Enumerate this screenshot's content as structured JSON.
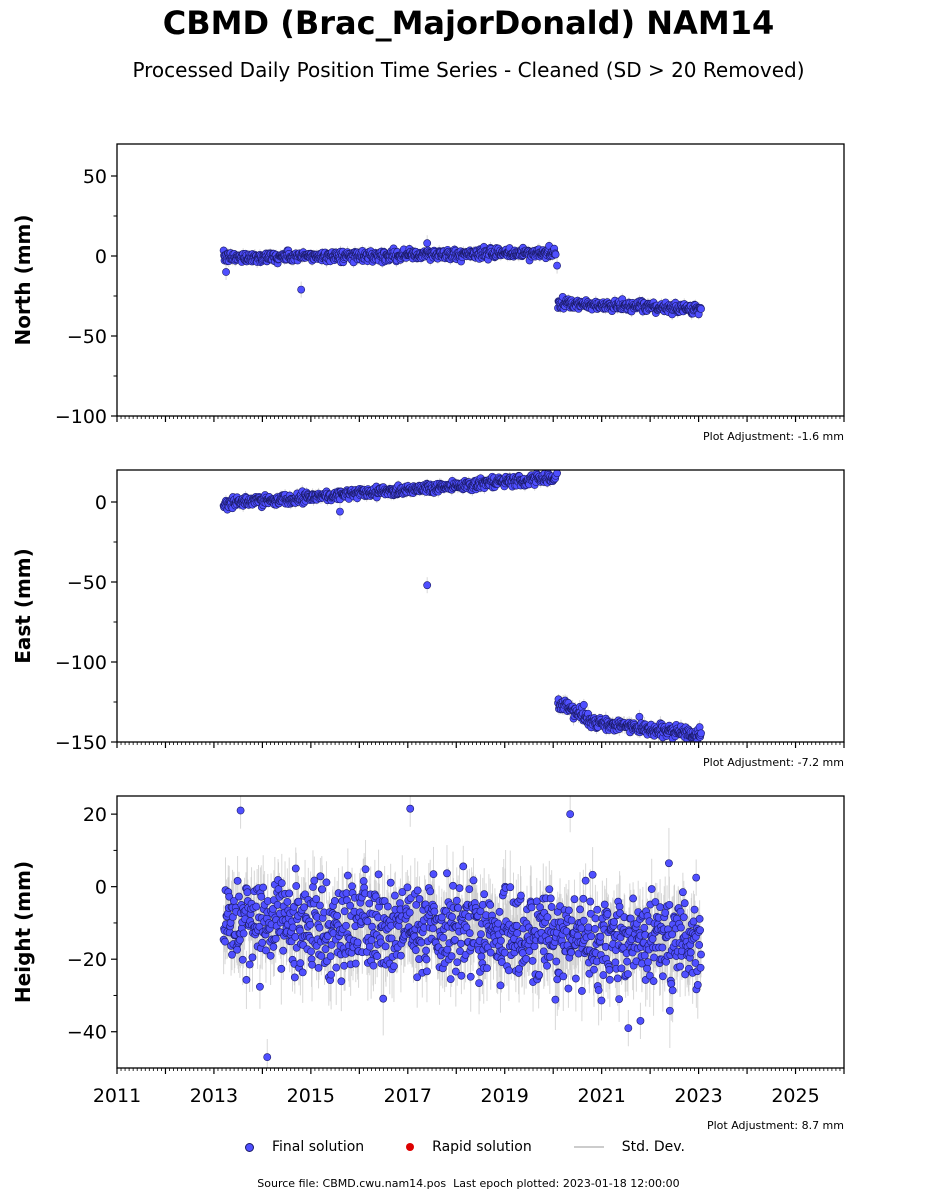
{
  "header": {
    "title": "CBMD (Brac_MajorDonald) NAM14",
    "subtitle": "Processed Daily Position Time Series - Cleaned (SD > 20 Removed)"
  },
  "colors": {
    "final": "#4f4fff",
    "final_edge": "#1a1a66",
    "rapid": "#dd0000",
    "stddev": "#c8c8c8"
  },
  "chart_data": [
    {
      "type": "scatter",
      "id": "north",
      "ylabel": "North (mm)",
      "xlim": [
        2011,
        2026
      ],
      "ylim": [
        -100,
        70
      ],
      "yticks": [
        {
          "value": 50,
          "label": "50"
        },
        {
          "value": 0,
          "label": "0"
        },
        {
          "value": -50,
          "label": "−50"
        },
        {
          "value": -100,
          "label": "−100"
        }
      ],
      "adjustment": "Plot Adjustment: -1.6 mm",
      "segments": [
        {
          "x0": 2013.2,
          "x1": 2020.05,
          "y0": -1,
          "y1": 2,
          "noise": 1.6,
          "err": 2.5
        },
        {
          "x0": 2020.1,
          "x1": 2023.05,
          "y0": -30,
          "y1": -33,
          "noise": 1.5,
          "err": 2.5
        }
      ],
      "outliers": [
        {
          "x": 2013.25,
          "y": -10
        },
        {
          "x": 2014.8,
          "y": -21
        },
        {
          "x": 2017.4,
          "y": 8
        },
        {
          "x": 2020.08,
          "y": -6
        }
      ]
    },
    {
      "type": "scatter",
      "id": "east",
      "ylabel": "East (mm)",
      "xlim": [
        2011,
        2026
      ],
      "ylim": [
        -150,
        20
      ],
      "yticks": [
        {
          "value": 0,
          "label": "0"
        },
        {
          "value": -50,
          "label": "−50"
        },
        {
          "value": -100,
          "label": "−100"
        },
        {
          "value": -150,
          "label": "−150"
        }
      ],
      "adjustment": "Plot Adjustment: -7.2 mm",
      "segments": [
        {
          "x0": 2013.2,
          "x1": 2020.05,
          "y0": -1,
          "y1": 15,
          "noise": 1.6,
          "err": 2.5
        },
        {
          "x0": 2020.1,
          "x1": 2020.7,
          "y0": -124,
          "y1": -136,
          "noise": 2.0,
          "err": 3
        },
        {
          "x0": 2020.7,
          "x1": 2023.05,
          "y0": -137,
          "y1": -146,
          "noise": 1.8,
          "err": 3
        }
      ],
      "outliers": [
        {
          "x": 2017.4,
          "y": -52
        },
        {
          "x": 2015.6,
          "y": -6
        },
        {
          "x": 2020.08,
          "y": 18
        }
      ]
    },
    {
      "type": "scatter",
      "id": "height",
      "ylabel": "Height (mm)",
      "xlim": [
        2011,
        2026
      ],
      "ylim": [
        -50,
        25
      ],
      "yticks": [
        {
          "value": 20,
          "label": "20"
        },
        {
          "value": 0,
          "label": "0"
        },
        {
          "value": -20,
          "label": "−20"
        },
        {
          "value": -40,
          "label": "−40"
        }
      ],
      "xticks": [
        {
          "value": 2011,
          "label": "2011"
        },
        {
          "value": 2013,
          "label": "2013"
        },
        {
          "value": 2015,
          "label": "2015"
        },
        {
          "value": 2017,
          "label": "2017"
        },
        {
          "value": 2019,
          "label": "2019"
        },
        {
          "value": 2021,
          "label": "2021"
        },
        {
          "value": 2023,
          "label": "2023"
        },
        {
          "value": 2025,
          "label": "2025"
        }
      ],
      "adjustment": "Plot Adjustment: 8.7 mm",
      "segments": [
        {
          "x0": 2013.2,
          "x1": 2023.05,
          "y0": -10,
          "y1": -15,
          "noise": 6.5,
          "err": 7
        }
      ],
      "outliers": [
        {
          "x": 2013.55,
          "y": 21
        },
        {
          "x": 2017.05,
          "y": 21.5
        },
        {
          "x": 2020.35,
          "y": 20
        },
        {
          "x": 2014.1,
          "y": -47
        },
        {
          "x": 2021.55,
          "y": -39
        },
        {
          "x": 2021.8,
          "y": -37
        },
        {
          "x": 2022.95,
          "y": 2.5
        }
      ]
    }
  ],
  "legend": {
    "final": "Final solution",
    "rapid": "Rapid solution",
    "stddev": "Std. Dev."
  },
  "footer": {
    "source": "Source file: CBMD.cwu.nam14.pos",
    "last_epoch": "Last epoch plotted: 2023-01-18 12:00:00"
  }
}
